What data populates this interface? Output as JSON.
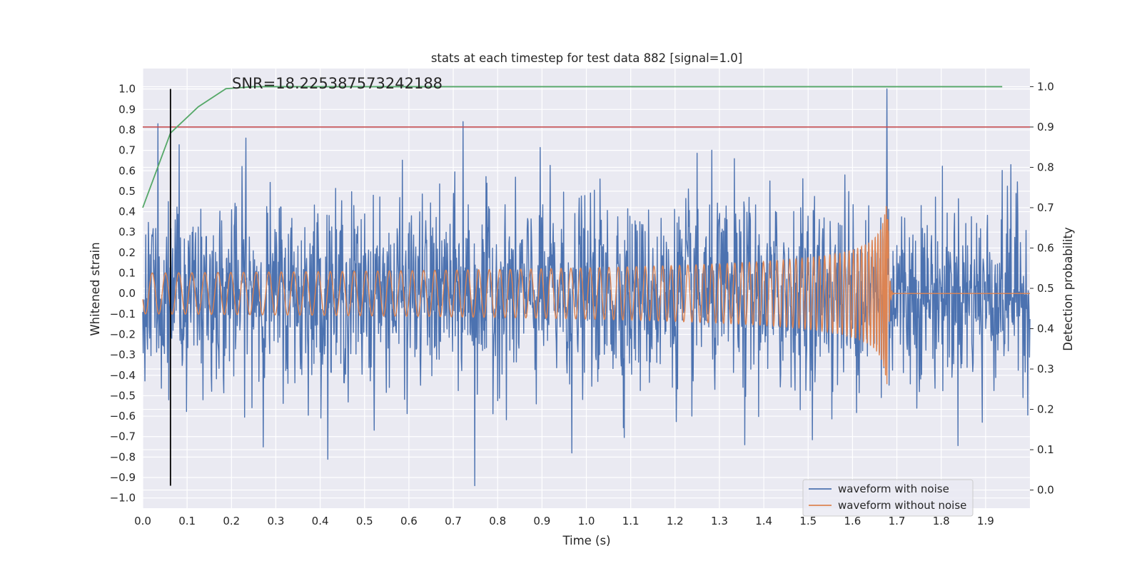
{
  "chart_data": {
    "type": "line",
    "title": "stats at each timestep for test data 882 [signal=1.0]",
    "xlabel": "Time (s)",
    "ylabel": "Whitened strain",
    "y2label": "Detection probability",
    "annotation": "SNR=18.225387573242188",
    "xlim": [
      0.0,
      2.0
    ],
    "ylim": [
      -1.05,
      1.1
    ],
    "y2lim": [
      -0.045,
      1.045
    ],
    "xticks": [
      "0.0",
      "0.1",
      "0.2",
      "0.3",
      "0.4",
      "0.5",
      "0.6",
      "0.7",
      "0.8",
      "0.9",
      "1.0",
      "1.1",
      "1.2",
      "1.3",
      "1.4",
      "1.5",
      "1.6",
      "1.7",
      "1.8",
      "1.9"
    ],
    "yticks": [
      "1.0",
      "0.9",
      "0.8",
      "0.7",
      "0.6",
      "0.5",
      "0.4",
      "0.3",
      "0.2",
      "0.1",
      "0.0",
      "−0.1",
      "−0.2",
      "−0.3",
      "−0.4",
      "−0.5",
      "−0.6",
      "−0.7",
      "−0.8",
      "−0.9",
      "−1.0"
    ],
    "y2ticks": [
      "1.0",
      "0.9",
      "0.8",
      "0.7",
      "0.6",
      "0.5",
      "0.4",
      "0.3",
      "0.2",
      "0.1",
      "0.0"
    ],
    "grid": true,
    "legend": {
      "placement": "lower-right",
      "entries": [
        "waveform with noise",
        "waveform without noise"
      ]
    },
    "series": [
      {
        "name": "waveform with noise",
        "color": "#4c72b0",
        "axis": "left",
        "kind": "noisy-strain",
        "x_start": 0.0,
        "x_end": 2.0,
        "samples": 2048,
        "std": 0.22,
        "min": -0.94,
        "max": 1.0,
        "peaks": [
          {
            "x": 0.034,
            "y": 0.83
          },
          {
            "x": 0.059,
            "y": -0.52
          },
          {
            "x": 0.233,
            "y": 0.76
          },
          {
            "x": 0.722,
            "y": 0.84
          },
          {
            "x": 0.748,
            "y": -0.94
          },
          {
            "x": 0.967,
            "y": -0.78
          },
          {
            "x": 1.678,
            "y": 1.0
          },
          {
            "x": 1.357,
            "y": -0.74
          },
          {
            "x": 1.893,
            "y": -0.63
          },
          {
            "x": 1.957,
            "y": 0.63
          }
        ]
      },
      {
        "name": "waveform without noise",
        "color": "#dd8452",
        "axis": "left",
        "kind": "chirp",
        "x_start": 0.0,
        "merger_time": 1.68,
        "x_end": 2.0,
        "start_amplitude": 0.1,
        "peak_amplitude": 0.45,
        "start_frequency_hz": 33,
        "end_frequency_hz": 250
      },
      {
        "name": "detection probability",
        "color": "#55a868",
        "axis": "right",
        "x": [
          0.0,
          0.0625,
          0.125,
          0.1875,
          0.25,
          0.3125,
          1.9375
        ],
        "y": [
          0.7,
          0.885,
          0.95,
          0.995,
          1.0,
          1.0,
          1.0
        ]
      }
    ],
    "threshold": {
      "axis": "right",
      "value": 0.9,
      "color": "#c44e52"
    },
    "marker_line": {
      "x": 0.0625,
      "y_from": -0.94,
      "y_to": 1.0,
      "color": "#000000"
    }
  }
}
